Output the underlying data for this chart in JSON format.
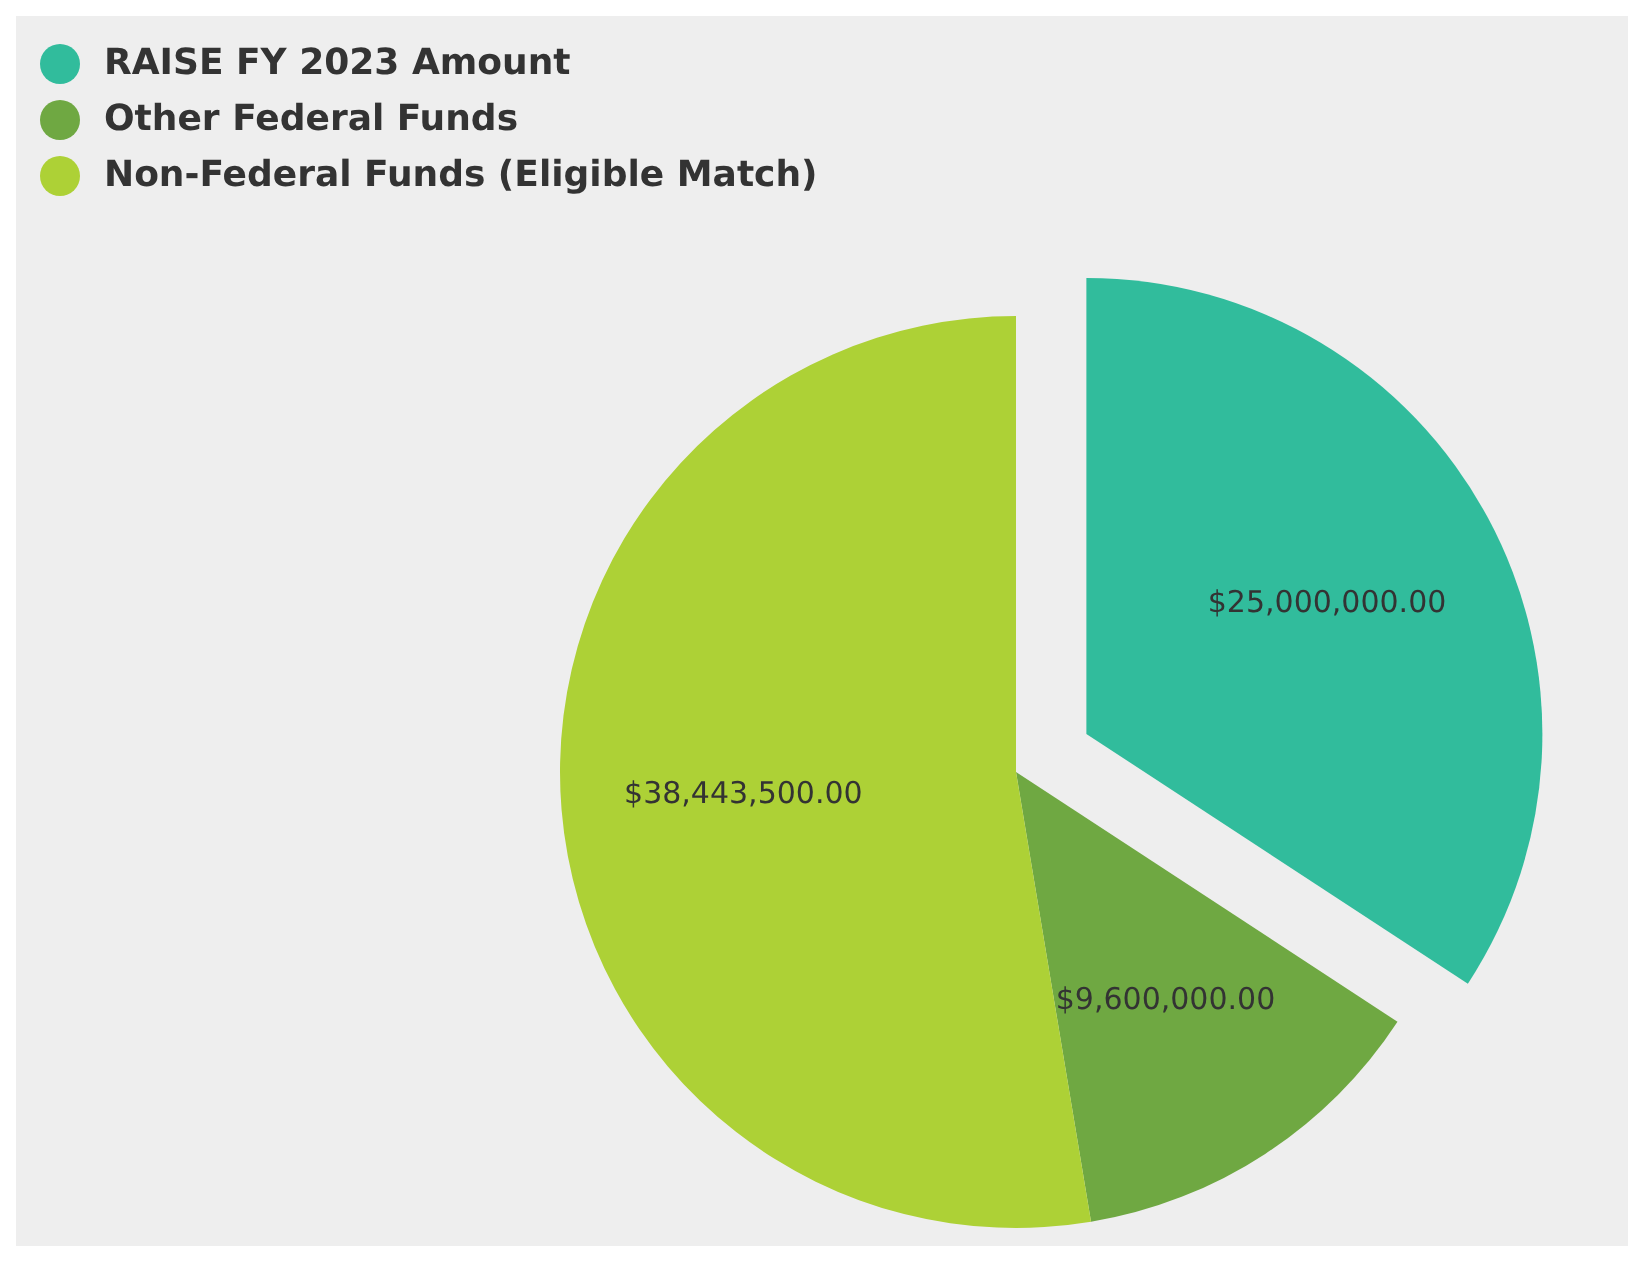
{
  "chart_data": {
    "type": "pie",
    "categories": [
      "RAISE FY 2023 Amount",
      "Other Federal Funds",
      "Non-Federal Funds (Eligible Match)"
    ],
    "values": [
      25000000,
      9600000,
      38443500
    ],
    "colors": [
      "#31bc9c",
      "#6fa842",
      "#add136"
    ],
    "value_labels": [
      "$25,000,000.00",
      "$9,600,000.00",
      "$38,443,500.00"
    ],
    "legend": "top left"
  }
}
